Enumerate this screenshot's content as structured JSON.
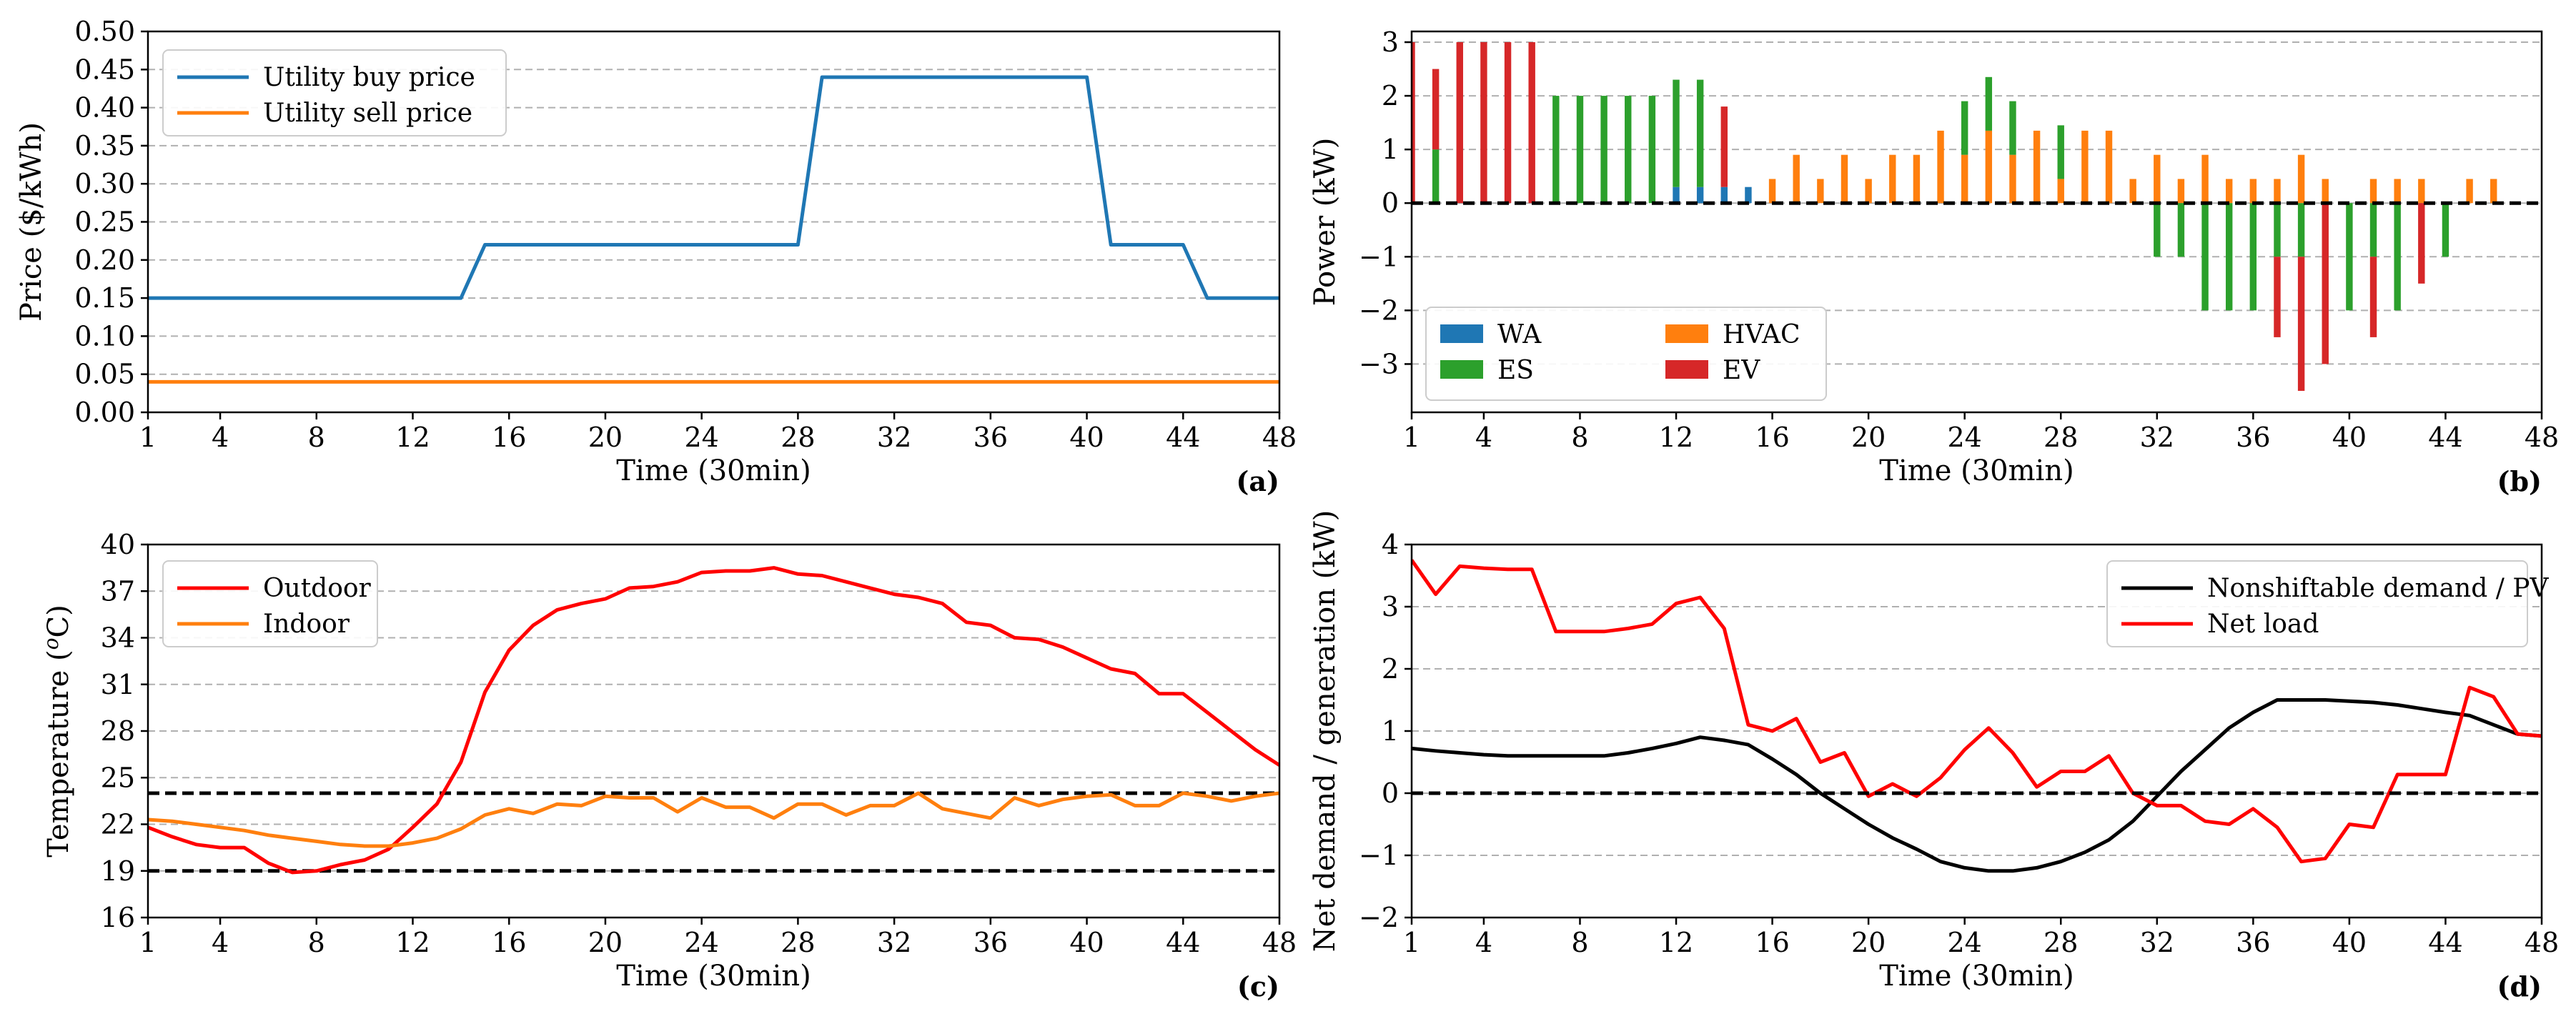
{
  "chart_data": [
    {
      "id": "a",
      "panel_label": "(a)",
      "type": "line",
      "xlabel": "Time (30min)",
      "ylabel": "Price ($/kWh)",
      "xlim": [
        1,
        48
      ],
      "ylim": [
        0.0,
        0.5
      ],
      "xticks": [
        1,
        4,
        8,
        12,
        16,
        20,
        24,
        28,
        32,
        36,
        40,
        44,
        48
      ],
      "yticks": [
        0.0,
        0.05,
        0.1,
        0.15,
        0.2,
        0.25,
        0.3,
        0.35,
        0.4,
        0.45,
        0.5
      ],
      "ytick_labels": [
        "0.00",
        "0.05",
        "0.10",
        "0.15",
        "0.20",
        "0.25",
        "0.30",
        "0.35",
        "0.40",
        "0.45",
        "0.50"
      ],
      "grid": "horizontal dashed",
      "legend_position": "upper-left",
      "series": [
        {
          "name": "Utility buy price",
          "color": "#1f77b4",
          "x": [
            1,
            14,
            15,
            28,
            29,
            40,
            41,
            44,
            45,
            48
          ],
          "y": [
            0.15,
            0.15,
            0.22,
            0.22,
            0.44,
            0.44,
            0.22,
            0.22,
            0.15,
            0.15
          ]
        },
        {
          "name": "Utility sell price",
          "color": "#ff7f0e",
          "x": [
            1,
            48
          ],
          "y": [
            0.04,
            0.04
          ]
        }
      ]
    },
    {
      "id": "b",
      "panel_label": "(b)",
      "type": "bar",
      "stacked": true,
      "xlabel": "Time (30min)",
      "ylabel": "Power (kW)",
      "xlim": [
        1,
        48
      ],
      "ylim": [
        -3.9,
        3.2
      ],
      "xticks": [
        1,
        4,
        8,
        12,
        16,
        20,
        24,
        28,
        32,
        36,
        40,
        44,
        48
      ],
      "yticks": [
        -3,
        -2,
        -1,
        0,
        1,
        2,
        3
      ],
      "ytick_labels": [
        "−3",
        "−2",
        "−1",
        "0",
        "1",
        "2",
        "3"
      ],
      "grid": "horizontal dashed",
      "zero_line": 0,
      "legend_position": "lower-left",
      "legend_columns": 2,
      "categories": [
        1,
        2,
        3,
        4,
        5,
        6,
        7,
        8,
        9,
        10,
        11,
        12,
        13,
        14,
        15,
        16,
        17,
        18,
        19,
        20,
        21,
        22,
        23,
        24,
        25,
        26,
        27,
        28,
        29,
        30,
        31,
        32,
        33,
        34,
        35,
        36,
        37,
        38,
        39,
        40,
        41,
        42,
        43,
        44,
        45,
        46,
        47,
        48
      ],
      "series": [
        {
          "name": "WA",
          "color": "#1f77b4",
          "values": [
            0,
            0,
            0,
            0,
            0,
            0,
            0,
            0,
            0,
            0,
            0,
            0.3,
            0.3,
            0.3,
            0.3,
            0,
            0,
            0,
            0,
            0,
            0,
            0,
            0,
            0,
            0,
            0,
            0,
            0,
            0,
            0,
            0,
            0,
            0,
            0,
            0,
            0,
            0,
            0,
            0,
            0,
            0,
            0,
            0,
            0,
            0,
            0,
            0,
            0
          ]
        },
        {
          "name": "HVAC",
          "color": "#ff7f0e",
          "values": [
            0,
            0,
            0,
            0,
            0,
            0,
            0,
            0,
            0,
            0,
            0,
            0,
            0,
            0,
            0,
            0.45,
            0.9,
            0.45,
            0.9,
            0.45,
            0.9,
            0.9,
            1.35,
            0.9,
            1.35,
            0.9,
            1.35,
            0.45,
            1.35,
            1.35,
            0.45,
            0.9,
            0.45,
            0.9,
            0.45,
            0.45,
            0.45,
            0.9,
            0.45,
            0,
            0.45,
            0.45,
            0.45,
            0,
            0.45,
            0.45,
            0,
            0
          ]
        },
        {
          "name": "ES",
          "color": "#2ca02c",
          "values": [
            0,
            1.0,
            0,
            0,
            0,
            0,
            2.0,
            2.0,
            2.0,
            2.0,
            2.0,
            2.0,
            2.0,
            0,
            0,
            0,
            0,
            0,
            0,
            0,
            0,
            0,
            0,
            1.0,
            1.0,
            1.0,
            0,
            1.0,
            0,
            0,
            0,
            -1.0,
            -1.0,
            -2.0,
            -2.0,
            -2.0,
            -1.0,
            -1.0,
            0,
            -2.0,
            -1.0,
            -2.0,
            0,
            -1.0,
            0,
            0,
            0,
            0
          ]
        },
        {
          "name": "EV",
          "color": "#d62728",
          "values": [
            3.0,
            1.5,
            3.0,
            3.0,
            3.0,
            3.0,
            0,
            0,
            0,
            0,
            0,
            0,
            0,
            1.5,
            0,
            0,
            0,
            0,
            0,
            0,
            0,
            0,
            0,
            0,
            0,
            0,
            0,
            0,
            0,
            0,
            0,
            0,
            0,
            0,
            0,
            0,
            -1.5,
            -2.5,
            -3.0,
            0,
            -1.5,
            0,
            -1.5,
            0,
            0,
            0,
            0,
            0
          ]
        }
      ]
    },
    {
      "id": "c",
      "panel_label": "(c)",
      "type": "line",
      "xlabel": "Time (30min)",
      "ylabel": "Temperature (°C)",
      "ylabel_parts": [
        "Temperature (",
        "o",
        "C)"
      ],
      "xlim": [
        1,
        48
      ],
      "ylim": [
        16,
        40
      ],
      "xticks": [
        1,
        4,
        8,
        12,
        16,
        20,
        24,
        28,
        32,
        36,
        40,
        44,
        48
      ],
      "yticks": [
        16,
        19,
        22,
        25,
        28,
        31,
        34,
        37,
        40
      ],
      "ytick_labels": [
        "16",
        "19",
        "22",
        "25",
        "28",
        "31",
        "34",
        "37",
        "40"
      ],
      "grid": "horizontal dashed",
      "reference_lines": [
        19,
        24
      ],
      "legend_position": "upper-left",
      "series": [
        {
          "name": "Outdoor",
          "color": "#ff0000",
          "x": [
            1,
            2,
            3,
            4,
            5,
            6,
            7,
            8,
            9,
            10,
            11,
            12,
            13,
            14,
            15,
            16,
            17,
            18,
            19,
            20,
            21,
            22,
            23,
            24,
            25,
            26,
            27,
            28,
            29,
            30,
            31,
            32,
            33,
            34,
            35,
            36,
            37,
            38,
            39,
            40,
            41,
            42,
            43,
            44,
            45,
            46,
            47,
            48
          ],
          "y": [
            21.8,
            21.2,
            20.7,
            20.5,
            20.5,
            19.5,
            18.9,
            19.0,
            19.4,
            19.7,
            20.4,
            21.8,
            23.3,
            26.0,
            30.5,
            33.2,
            34.8,
            35.8,
            36.2,
            36.5,
            37.2,
            37.3,
            37.6,
            38.2,
            38.3,
            38.3,
            38.5,
            38.1,
            38.0,
            37.6,
            37.2,
            36.8,
            36.6,
            36.2,
            35.0,
            34.8,
            34.0,
            33.9,
            33.4,
            32.7,
            32.0,
            31.7,
            30.4,
            30.4,
            29.2,
            28.0,
            26.8,
            25.8
          ]
        },
        {
          "name": "Indoor",
          "color": "#ff7f0e",
          "x": [
            1,
            2,
            3,
            4,
            5,
            6,
            7,
            8,
            9,
            10,
            11,
            12,
            13,
            14,
            15,
            16,
            17,
            18,
            19,
            20,
            21,
            22,
            23,
            24,
            25,
            26,
            27,
            28,
            29,
            30,
            31,
            32,
            33,
            34,
            35,
            36,
            37,
            38,
            39,
            40,
            41,
            42,
            43,
            44,
            45,
            46,
            47,
            48
          ],
          "y": [
            22.3,
            22.2,
            22.0,
            21.8,
            21.6,
            21.3,
            21.1,
            20.9,
            20.7,
            20.6,
            20.6,
            20.8,
            21.1,
            21.7,
            22.6,
            23.0,
            22.7,
            23.3,
            23.2,
            23.8,
            23.7,
            23.7,
            22.8,
            23.7,
            23.1,
            23.1,
            22.4,
            23.3,
            23.3,
            22.6,
            23.2,
            23.2,
            24.0,
            23.0,
            22.7,
            22.4,
            23.7,
            23.2,
            23.6,
            23.8,
            23.9,
            23.2,
            23.2,
            24.0,
            23.8,
            23.5,
            23.8,
            24.0
          ]
        }
      ]
    },
    {
      "id": "d",
      "panel_label": "(d)",
      "type": "line",
      "xlabel": "Time (30min)",
      "ylabel": "Net demand / generation (kW)",
      "xlim": [
        1,
        48
      ],
      "ylim": [
        -2,
        4
      ],
      "xticks": [
        1,
        4,
        8,
        12,
        16,
        20,
        24,
        28,
        32,
        36,
        40,
        44,
        48
      ],
      "yticks": [
        -2,
        -1,
        0,
        1,
        2,
        3,
        4
      ],
      "ytick_labels": [
        "−2",
        "−1",
        "0",
        "1",
        "2",
        "3",
        "4"
      ],
      "grid": "horizontal dashed",
      "zero_line": 0,
      "legend_position": "upper-right",
      "series": [
        {
          "name": "Nonshiftable demand / PV",
          "color": "#000000",
          "x": [
            1,
            2,
            3,
            4,
            5,
            6,
            7,
            8,
            9,
            10,
            11,
            12,
            13,
            14,
            15,
            16,
            17,
            18,
            19,
            20,
            21,
            22,
            23,
            24,
            25,
            26,
            27,
            28,
            29,
            30,
            31,
            32,
            33,
            34,
            35,
            36,
            37,
            38,
            39,
            40,
            41,
            42,
            43,
            44,
            45,
            46,
            47,
            48
          ],
          "y": [
            0.72,
            0.68,
            0.65,
            0.62,
            0.6,
            0.6,
            0.6,
            0.6,
            0.6,
            0.65,
            0.72,
            0.8,
            0.9,
            0.85,
            0.78,
            0.55,
            0.3,
            0.0,
            -0.25,
            -0.5,
            -0.72,
            -0.9,
            -1.1,
            -1.2,
            -1.25,
            -1.25,
            -1.2,
            -1.1,
            -0.95,
            -0.75,
            -0.45,
            -0.05,
            0.35,
            0.7,
            1.05,
            1.3,
            1.5,
            1.5,
            1.5,
            1.48,
            1.46,
            1.42,
            1.36,
            1.3,
            1.25,
            1.1,
            0.95,
            0.92
          ]
        },
        {
          "name": "Net load",
          "color": "#ff0000",
          "x": [
            1,
            2,
            3,
            4,
            5,
            6,
            7,
            8,
            9,
            10,
            11,
            12,
            13,
            14,
            15,
            16,
            17,
            18,
            19,
            20,
            21,
            22,
            23,
            24,
            25,
            26,
            27,
            28,
            29,
            30,
            31,
            32,
            33,
            34,
            35,
            36,
            37,
            38,
            39,
            40,
            41,
            42,
            43,
            44,
            45,
            46,
            47,
            48
          ],
          "y": [
            3.75,
            3.2,
            3.65,
            3.62,
            3.6,
            3.6,
            2.6,
            2.6,
            2.6,
            2.65,
            2.72,
            3.05,
            3.15,
            2.65,
            1.1,
            1.0,
            1.2,
            0.5,
            0.65,
            -0.05,
            0.15,
            -0.05,
            0.25,
            0.7,
            1.05,
            0.65,
            0.1,
            0.35,
            0.35,
            0.6,
            0.0,
            -0.2,
            -0.2,
            -0.45,
            -0.5,
            -0.25,
            -0.55,
            -1.1,
            -1.05,
            -0.5,
            -0.55,
            0.3,
            0.3,
            0.3,
            1.7,
            1.55,
            0.95,
            0.92
          ]
        }
      ]
    }
  ]
}
